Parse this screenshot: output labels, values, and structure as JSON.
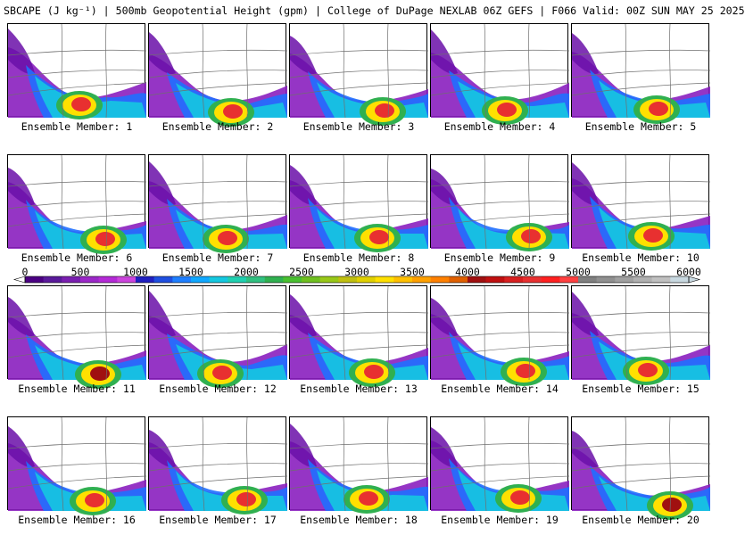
{
  "title": "SBCAPE (J kg⁻¹) | 500mb Geopotential Height (gpm) | College of DuPage NEXLAB 06Z GEFS | F066 Valid: 00Z SUN MAY 25 2025",
  "members": [
    {
      "label": "Ensemble Member: 1",
      "cape_peak": 4500
    },
    {
      "label": "Ensemble Member: 2",
      "cape_peak": 4500
    },
    {
      "label": "Ensemble Member: 3",
      "cape_peak": 4500
    },
    {
      "label": "Ensemble Member: 4",
      "cape_peak": 4500
    },
    {
      "label": "Ensemble Member: 5",
      "cape_peak": 4500
    },
    {
      "label": "Ensemble Member: 6",
      "cape_peak": 4500
    },
    {
      "label": "Ensemble Member: 7",
      "cape_peak": 4500
    },
    {
      "label": "Ensemble Member: 8",
      "cape_peak": 4500
    },
    {
      "label": "Ensemble Member: 9",
      "cape_peak": 4500
    },
    {
      "label": "Ensemble Member: 10",
      "cape_peak": 4500
    },
    {
      "label": "Ensemble Member: 11",
      "cape_peak": 4000
    },
    {
      "label": "Ensemble Member: 12",
      "cape_peak": 4500
    },
    {
      "label": "Ensemble Member: 13",
      "cape_peak": 4500
    },
    {
      "label": "Ensemble Member: 14",
      "cape_peak": 4500
    },
    {
      "label": "Ensemble Member: 15",
      "cape_peak": 4500
    },
    {
      "label": "Ensemble Member: 16",
      "cape_peak": 4500
    },
    {
      "label": "Ensemble Member: 17",
      "cape_peak": 4500
    },
    {
      "label": "Ensemble Member: 18",
      "cape_peak": 4500
    },
    {
      "label": "Ensemble Member: 19",
      "cape_peak": 4500
    },
    {
      "label": "Ensemble Member: 20",
      "cape_peak": 4000
    }
  ],
  "colorbar": {
    "ticks": [
      "0",
      "500",
      "1000",
      "1500",
      "2000",
      "2500",
      "3000",
      "3500",
      "4000",
      "4500",
      "5000",
      "5500",
      "6000"
    ],
    "colors": [
      "#4b0082",
      "#5a1a9a",
      "#7a1fb0",
      "#9b28c8",
      "#b42ad6",
      "#cc44dd",
      "#2020c0",
      "#1f4fe0",
      "#1f7fff",
      "#10a8ff",
      "#15c8e0",
      "#20d0b0",
      "#30c080",
      "#30b050",
      "#49c030",
      "#6fc020",
      "#98c818",
      "#c0c010",
      "#e0d000",
      "#ffe000",
      "#ffc000",
      "#ffa000",
      "#ff8000",
      "#e06000",
      "#a01010",
      "#c01010",
      "#d82020",
      "#e83030",
      "#ff2020",
      "#ff4040",
      "#808080",
      "#909090",
      "#a0a0a0",
      "#b0b0b0",
      "#c0c0c0",
      "#c8d8e0"
    ]
  }
}
